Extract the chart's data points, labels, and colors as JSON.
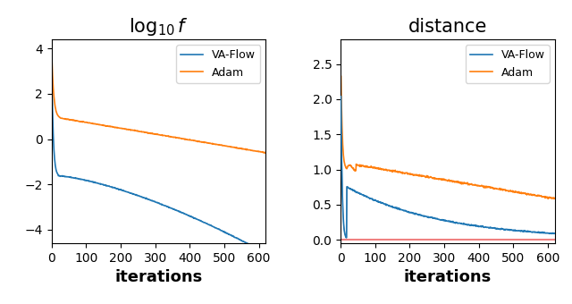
{
  "title_left": "log_{10}f",
  "title_right": "distance",
  "xlabel": "iterations",
  "xlim": [
    0,
    620
  ],
  "xticks": [
    0,
    100,
    200,
    300,
    400,
    500,
    600
  ],
  "ylim_left": [
    -4.6,
    4.4
  ],
  "yticks_left": [
    -4,
    -2,
    0,
    2,
    4
  ],
  "ylim_right": [
    -0.05,
    2.85
  ],
  "yticks_right": [
    0.0,
    0.5,
    1.0,
    1.5,
    2.0,
    2.5
  ],
  "color_va": "#1f77b4",
  "color_adam": "#ff7f0e",
  "color_gray": "#888888",
  "color_zero": "#f08080",
  "legend_labels": [
    "VA-Flow",
    "Adam"
  ],
  "n_points": 620,
  "title_fontsize": 15,
  "label_fontsize": 13
}
